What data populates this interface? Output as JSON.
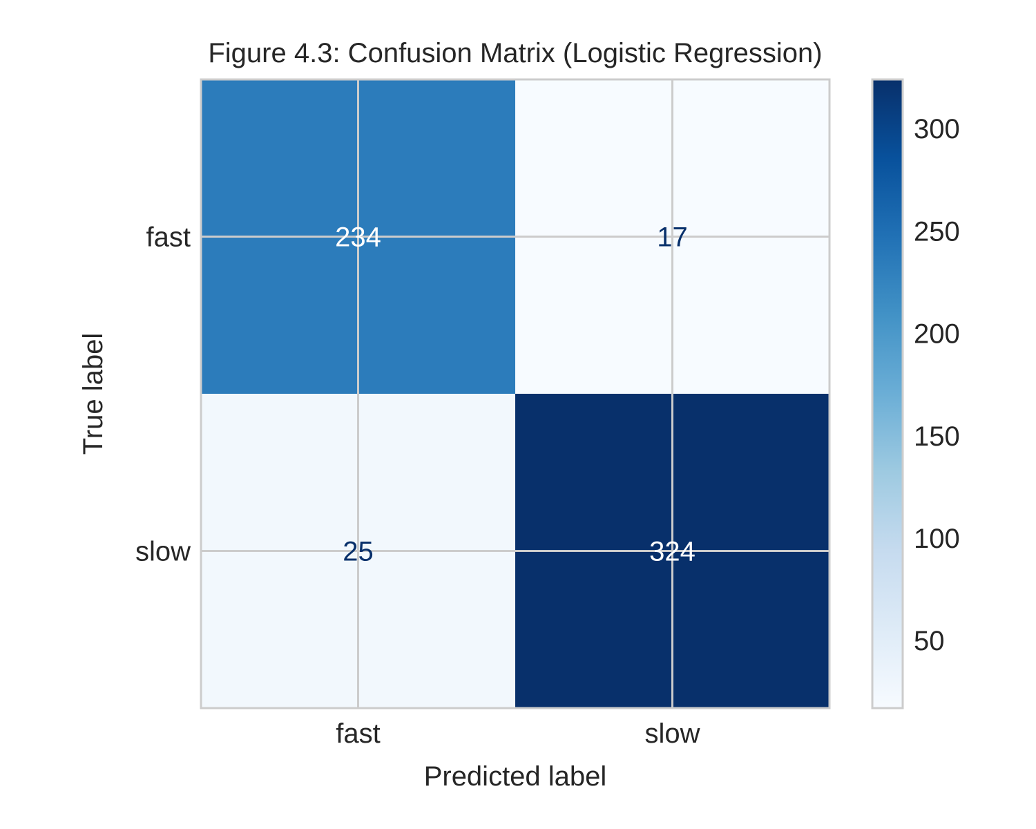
{
  "chart_data": {
    "type": "heatmap",
    "title": "Figure 4.3: Confusion Matrix (Logistic Regression)",
    "xlabel": "Predicted label",
    "ylabel": "True label",
    "x_categories": [
      "fast",
      "slow"
    ],
    "y_categories": [
      "fast",
      "slow"
    ],
    "values": [
      [
        234,
        17
      ],
      [
        25,
        324
      ]
    ],
    "colormap": "Blues",
    "colorbar": {
      "range": [
        17,
        324
      ],
      "ticks": [
        50,
        100,
        150,
        200,
        250,
        300
      ],
      "tick_labels": [
        "50",
        "100",
        "150",
        "200",
        "250",
        "300"
      ]
    },
    "grid": true
  },
  "colors": {
    "text": "#262626",
    "gridline": "#cccccc",
    "dark_cell_text": "#ffffff",
    "light_cell_text": "#08306b"
  }
}
